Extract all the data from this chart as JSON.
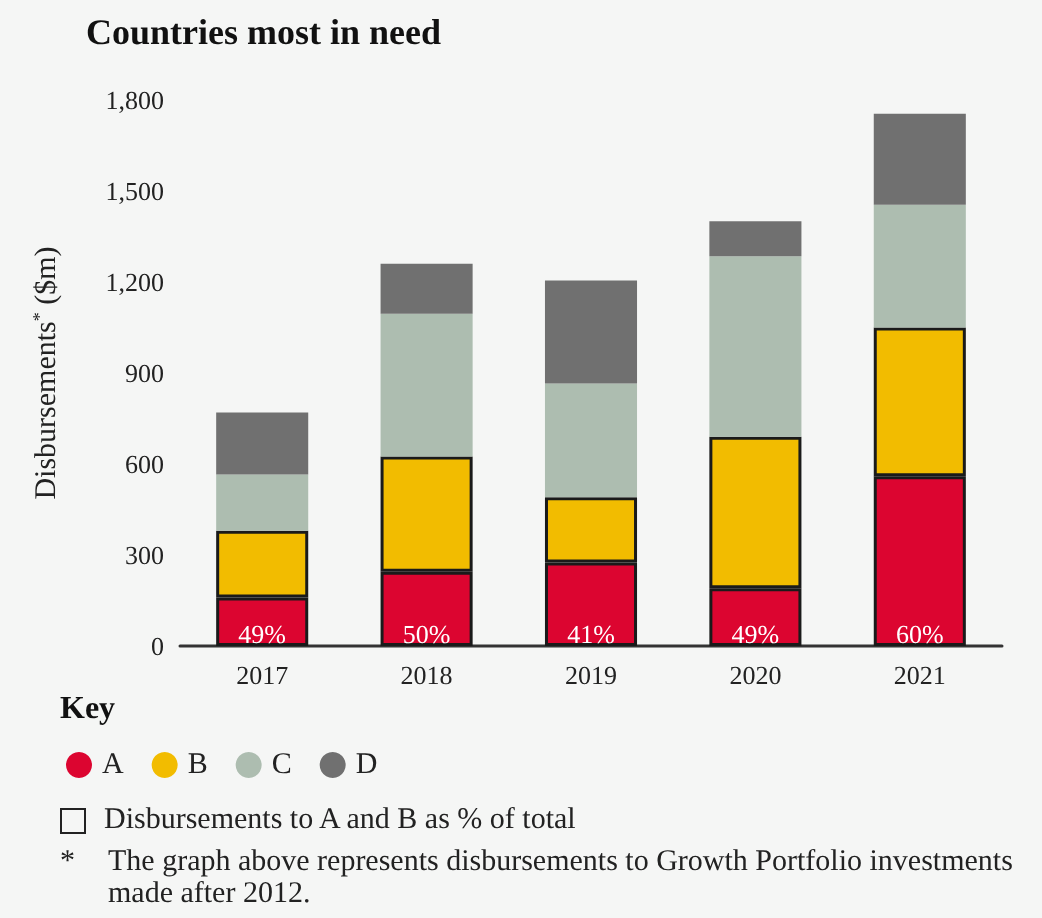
{
  "chart_data": {
    "type": "bar",
    "title": "Countries most in need",
    "ylabel": "Disbursements$^{*}$ ($m)",
    "categories": [
      "2017",
      "2018",
      "2019",
      "2020",
      "2021"
    ],
    "stacked": true,
    "series": [
      {
        "name": "A",
        "color": "#dc0530",
        "values": [
          160,
          245,
          275,
          190,
          560
        ]
      },
      {
        "name": "B",
        "color": "#f2bc00",
        "values": [
          220,
          380,
          215,
          500,
          490
        ]
      },
      {
        "name": "C",
        "color": "#adbdb0",
        "values": [
          185,
          470,
          375,
          595,
          405
        ]
      },
      {
        "name": "D",
        "color": "#707070",
        "values": [
          205,
          165,
          340,
          115,
          300
        ]
      }
    ],
    "ylim": [
      0,
      1800
    ],
    "yticks": [
      0,
      300,
      600,
      900,
      {
        "value": 1200,
        "label": "1,200"
      },
      {
        "value": 1500,
        "label": "1,500"
      },
      {
        "value": 1800,
        "label": "1,800"
      }
    ],
    "grid": false,
    "legend": "bottom left",
    "annotations": [
      "Key",
      "Disbursements to A and B as % of total",
      "* The graph above represents disbursements to Growth Portfolio investments made after 2012.",
      {
        "text": "49%",
        "x": "2017",
        "y": 40
      },
      {
        "text": "50%",
        "x": "2018",
        "y": 40
      },
      {
        "text": "41%",
        "x": "2019",
        "y": 40
      },
      {
        "text": "49%",
        "x": "2020",
        "y": 40
      },
      {
        "text": "60%",
        "x": "2021",
        "y": 40
      }
    ]
  }
}
